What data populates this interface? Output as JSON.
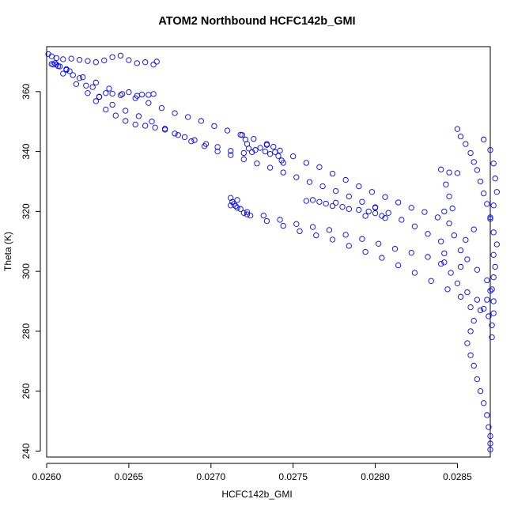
{
  "chart_data": {
    "type": "scatter",
    "title": "ATOM2 Northbound HCFC142b_GMI",
    "xlabel": "HCFC142b_GMI",
    "ylabel": "Theta (K)",
    "xlim": [
      0.026,
      0.0287
    ],
    "ylim": [
      238,
      375
    ],
    "x_ticks": [
      0.026,
      0.0265,
      0.027,
      0.0275,
      0.028,
      0.0285
    ],
    "x_tick_labels": [
      "0.0260",
      "0.0265",
      "0.0270",
      "0.0275",
      "0.0280",
      "0.0285"
    ],
    "y_ticks": [
      240,
      260,
      280,
      300,
      320,
      340,
      360
    ],
    "y_tick_labels": [
      "240",
      "260",
      "280",
      "300",
      "320",
      "340",
      "360"
    ],
    "marker": "open-circle",
    "color": "#0000ff",
    "series": [
      {
        "name": "upper-left-cluster",
        "points": [
          [
            0.02601,
            372.5
          ],
          [
            0.02603,
            371.8
          ],
          [
            0.02606,
            371.2
          ],
          [
            0.0261,
            370.8
          ],
          [
            0.02615,
            371.0
          ],
          [
            0.0262,
            370.6
          ],
          [
            0.02625,
            370.2
          ],
          [
            0.0263,
            369.8
          ],
          [
            0.02635,
            370.4
          ],
          [
            0.0264,
            371.5
          ],
          [
            0.02645,
            372.0
          ],
          [
            0.0265,
            370.5
          ],
          [
            0.02655,
            369.5
          ],
          [
            0.0266,
            369.8
          ],
          [
            0.02665,
            369.0
          ],
          [
            0.02667,
            370.0
          ],
          [
            0.02604,
            369.0
          ],
          [
            0.02607,
            368.5
          ],
          [
            0.02612,
            367.5
          ]
        ]
      },
      {
        "name": "upper-arm-a",
        "points": [
          [
            0.02605,
            369.5
          ],
          [
            0.02612,
            367.2
          ],
          [
            0.0262,
            364.5
          ],
          [
            0.02628,
            361.5
          ],
          [
            0.02636,
            359.5
          ],
          [
            0.02645,
            358.8
          ],
          [
            0.02655,
            358.6
          ],
          [
            0.02662,
            358.9
          ],
          [
            0.02665,
            359.2
          ],
          [
            0.02632,
            358.2
          ],
          [
            0.0264,
            359.3
          ],
          [
            0.0265,
            359.8
          ],
          [
            0.02658,
            359.0
          ]
        ]
      },
      {
        "name": "upper-arm-b",
        "points": [
          [
            0.02603,
            369.2
          ],
          [
            0.0261,
            366.0
          ],
          [
            0.02618,
            362.5
          ],
          [
            0.02625,
            359.5
          ],
          [
            0.0263,
            356.8
          ],
          [
            0.02636,
            354.0
          ],
          [
            0.02642,
            352.0
          ],
          [
            0.02648,
            350.2
          ],
          [
            0.02654,
            349.0
          ],
          [
            0.0266,
            348.6
          ],
          [
            0.02666,
            348.0
          ],
          [
            0.02672,
            347.3
          ],
          [
            0.02678,
            346.0
          ],
          [
            0.02684,
            344.8
          ],
          [
            0.0269,
            343.8
          ],
          [
            0.02697,
            342.5
          ],
          [
            0.02704,
            341.5
          ],
          [
            0.02712,
            340.2
          ],
          [
            0.0272,
            339.5
          ]
        ]
      },
      {
        "name": "upper-arm-c",
        "points": [
          [
            0.02606,
            369.0
          ],
          [
            0.02614,
            366.8
          ],
          [
            0.02622,
            364.8
          ],
          [
            0.0263,
            363.0
          ],
          [
            0.02638,
            361.0
          ],
          [
            0.02646,
            359.2
          ],
          [
            0.02654,
            357.8
          ],
          [
            0.02662,
            356.2
          ],
          [
            0.0267,
            354.5
          ],
          [
            0.02678,
            352.8
          ],
          [
            0.02686,
            351.5
          ],
          [
            0.02694,
            350.2
          ],
          [
            0.02702,
            348.5
          ],
          [
            0.0271,
            347.0
          ],
          [
            0.02718,
            345.6
          ],
          [
            0.02726,
            344.2
          ],
          [
            0.02734,
            342.5
          ],
          [
            0.02742,
            340.3
          ],
          [
            0.0275,
            338.4
          ],
          [
            0.02758,
            336.2
          ],
          [
            0.02766,
            334.8
          ],
          [
            0.02774,
            332.6
          ],
          [
            0.02782,
            330.5
          ],
          [
            0.0279,
            328.4
          ],
          [
            0.02798,
            326.5
          ],
          [
            0.02806,
            324.8
          ],
          [
            0.02814,
            323.0
          ],
          [
            0.02822,
            321.2
          ],
          [
            0.0283,
            319.8
          ],
          [
            0.02838,
            318.0
          ]
        ]
      },
      {
        "name": "upper-arm-d",
        "points": [
          [
            0.02608,
            368.4
          ],
          [
            0.02616,
            365.5
          ],
          [
            0.02624,
            362.0
          ],
          [
            0.02632,
            358.3
          ],
          [
            0.0264,
            355.6
          ],
          [
            0.02648,
            353.6
          ],
          [
            0.02656,
            351.8
          ],
          [
            0.02664,
            350.0
          ],
          [
            0.02672,
            347.6
          ],
          [
            0.0268,
            345.5
          ],
          [
            0.02688,
            343.4
          ],
          [
            0.02696,
            341.8
          ],
          [
            0.02704,
            340.0
          ],
          [
            0.02712,
            338.8
          ],
          [
            0.0272,
            337.4
          ],
          [
            0.02728,
            336.0
          ],
          [
            0.02736,
            334.6
          ],
          [
            0.02744,
            333.0
          ],
          [
            0.02752,
            331.4
          ],
          [
            0.0276,
            329.8
          ],
          [
            0.02768,
            328.4
          ],
          [
            0.02776,
            326.8
          ],
          [
            0.02784,
            325.0
          ],
          [
            0.02792,
            323.2
          ],
          [
            0.028,
            321.4
          ],
          [
            0.02808,
            319.5
          ],
          [
            0.02816,
            317.2
          ],
          [
            0.02824,
            315.0
          ],
          [
            0.02832,
            312.5
          ],
          [
            0.0284,
            310.0
          ]
        ]
      },
      {
        "name": "mid-cluster-a",
        "points": [
          [
            0.02719,
            345.5
          ],
          [
            0.02721,
            344.0
          ],
          [
            0.02722,
            342.5
          ],
          [
            0.02723,
            341.0
          ],
          [
            0.02725,
            339.8
          ],
          [
            0.02727,
            340.5
          ],
          [
            0.0273,
            341.2
          ],
          [
            0.02733,
            340.0
          ],
          [
            0.02736,
            339.2
          ],
          [
            0.02739,
            339.8
          ],
          [
            0.02741,
            338.5
          ],
          [
            0.02743,
            337.0
          ],
          [
            0.02744,
            336.2
          ],
          [
            0.02738,
            341.6
          ],
          [
            0.02734,
            342.2
          ]
        ]
      },
      {
        "name": "mid-cluster-b",
        "points": [
          [
            0.02712,
            324.5
          ],
          [
            0.02713,
            323.2
          ],
          [
            0.02714,
            322.5
          ],
          [
            0.02715,
            321.8
          ],
          [
            0.02716,
            321.2
          ],
          [
            0.02718,
            320.8
          ],
          [
            0.0272,
            319.5
          ],
          [
            0.02722,
            319.0
          ],
          [
            0.02712,
            322.0
          ],
          [
            0.02716,
            323.8
          ]
        ]
      },
      {
        "name": "mid-arm-a",
        "points": [
          [
            0.02722,
            319.8
          ],
          [
            0.02732,
            318.6
          ],
          [
            0.02742,
            317.2
          ],
          [
            0.02752,
            315.8
          ],
          [
            0.02762,
            314.8
          ],
          [
            0.02772,
            313.8
          ],
          [
            0.02782,
            312.2
          ],
          [
            0.02792,
            310.8
          ],
          [
            0.02802,
            309.2
          ],
          [
            0.02812,
            307.5
          ],
          [
            0.02822,
            306.2
          ],
          [
            0.02832,
            304.8
          ],
          [
            0.02842,
            303.0
          ],
          [
            0.02852,
            301.5
          ]
        ]
      },
      {
        "name": "mid-arm-b",
        "points": [
          [
            0.02724,
            318.6
          ],
          [
            0.02734,
            316.8
          ],
          [
            0.02744,
            315.2
          ],
          [
            0.02754,
            313.4
          ],
          [
            0.02764,
            312.0
          ],
          [
            0.02774,
            310.6
          ],
          [
            0.02784,
            308.5
          ],
          [
            0.02794,
            306.5
          ],
          [
            0.02804,
            304.5
          ],
          [
            0.02814,
            302.0
          ],
          [
            0.02824,
            299.5
          ],
          [
            0.02834,
            296.8
          ],
          [
            0.02844,
            294.0
          ],
          [
            0.02852,
            291.5
          ],
          [
            0.02858,
            288.0
          ]
        ]
      },
      {
        "name": "mid-cluster-c",
        "points": [
          [
            0.02758,
            323.5
          ],
          [
            0.02762,
            323.8
          ],
          [
            0.02766,
            323.2
          ],
          [
            0.0277,
            322.6
          ],
          [
            0.02774,
            321.8
          ],
          [
            0.02776,
            322.9
          ],
          [
            0.0278,
            321.5
          ],
          [
            0.02784,
            320.8
          ],
          [
            0.0279,
            320.5
          ],
          [
            0.02796,
            320.0
          ],
          [
            0.028,
            319.4
          ],
          [
            0.02804,
            318.5
          ],
          [
            0.02806,
            317.8
          ],
          [
            0.028,
            321.2
          ],
          [
            0.02794,
            318.5
          ]
        ]
      },
      {
        "name": "right-column",
        "points": [
          [
            0.0285,
            347.5
          ],
          [
            0.02852,
            345.0
          ],
          [
            0.02855,
            342.5
          ],
          [
            0.02858,
            339.5
          ],
          [
            0.0286,
            336.5
          ],
          [
            0.02862,
            333.8
          ],
          [
            0.02864,
            330.0
          ],
          [
            0.02866,
            326.0
          ],
          [
            0.02868,
            322.5
          ],
          [
            0.0287,
            318.0
          ],
          [
            0.0286,
            314.0
          ],
          [
            0.02855,
            310.5
          ],
          [
            0.02852,
            307.0
          ],
          [
            0.02856,
            304.0
          ],
          [
            0.02862,
            300.5
          ],
          [
            0.02868,
            297.0
          ],
          [
            0.0287,
            293.5
          ],
          [
            0.02868,
            290.5
          ],
          [
            0.02864,
            287.0
          ],
          [
            0.0286,
            283.5
          ],
          [
            0.02858,
            280.0
          ],
          [
            0.02856,
            276.0
          ],
          [
            0.02858,
            272.0
          ],
          [
            0.0286,
            268.5
          ],
          [
            0.02862,
            264.0
          ],
          [
            0.02864,
            260.0
          ],
          [
            0.02866,
            256.0
          ],
          [
            0.02868,
            252.0
          ],
          [
            0.02869,
            248.0
          ],
          [
            0.0287,
            245.0
          ],
          [
            0.0287,
            242.5
          ],
          [
            0.0287,
            240.5
          ],
          [
            0.0284,
            334.0
          ],
          [
            0.02845,
            333.0
          ],
          [
            0.0285,
            332.8
          ],
          [
            0.02866,
            344.0
          ],
          [
            0.0287,
            340.5
          ],
          [
            0.02872,
            336.0
          ],
          [
            0.02873,
            331.0
          ],
          [
            0.02874,
            326.5
          ],
          [
            0.02872,
            322.0
          ],
          [
            0.0287,
            317.5
          ],
          [
            0.02872,
            313.0
          ],
          [
            0.02874,
            309.0
          ],
          [
            0.02872,
            305.5
          ],
          [
            0.02873,
            301.5
          ],
          [
            0.02872,
            298.0
          ],
          [
            0.02871,
            294.0
          ],
          [
            0.02872,
            290.0
          ],
          [
            0.02872,
            286.0
          ],
          [
            0.02871,
            282.0
          ],
          [
            0.02871,
            278.0
          ],
          [
            0.02842,
            320.0
          ],
          [
            0.02845,
            316.0
          ],
          [
            0.02848,
            312.0
          ],
          [
            0.02842,
            306.0
          ],
          [
            0.0284,
            302.5
          ],
          [
            0.02846,
            299.5
          ],
          [
            0.0285,
            296.0
          ],
          [
            0.02856,
            293.0
          ],
          [
            0.02862,
            290.5
          ],
          [
            0.02866,
            287.5
          ],
          [
            0.02869,
            285.0
          ],
          [
            0.02843,
            329.0
          ],
          [
            0.02845,
            325.0
          ],
          [
            0.02847,
            321.0
          ]
        ]
      }
    ]
  }
}
